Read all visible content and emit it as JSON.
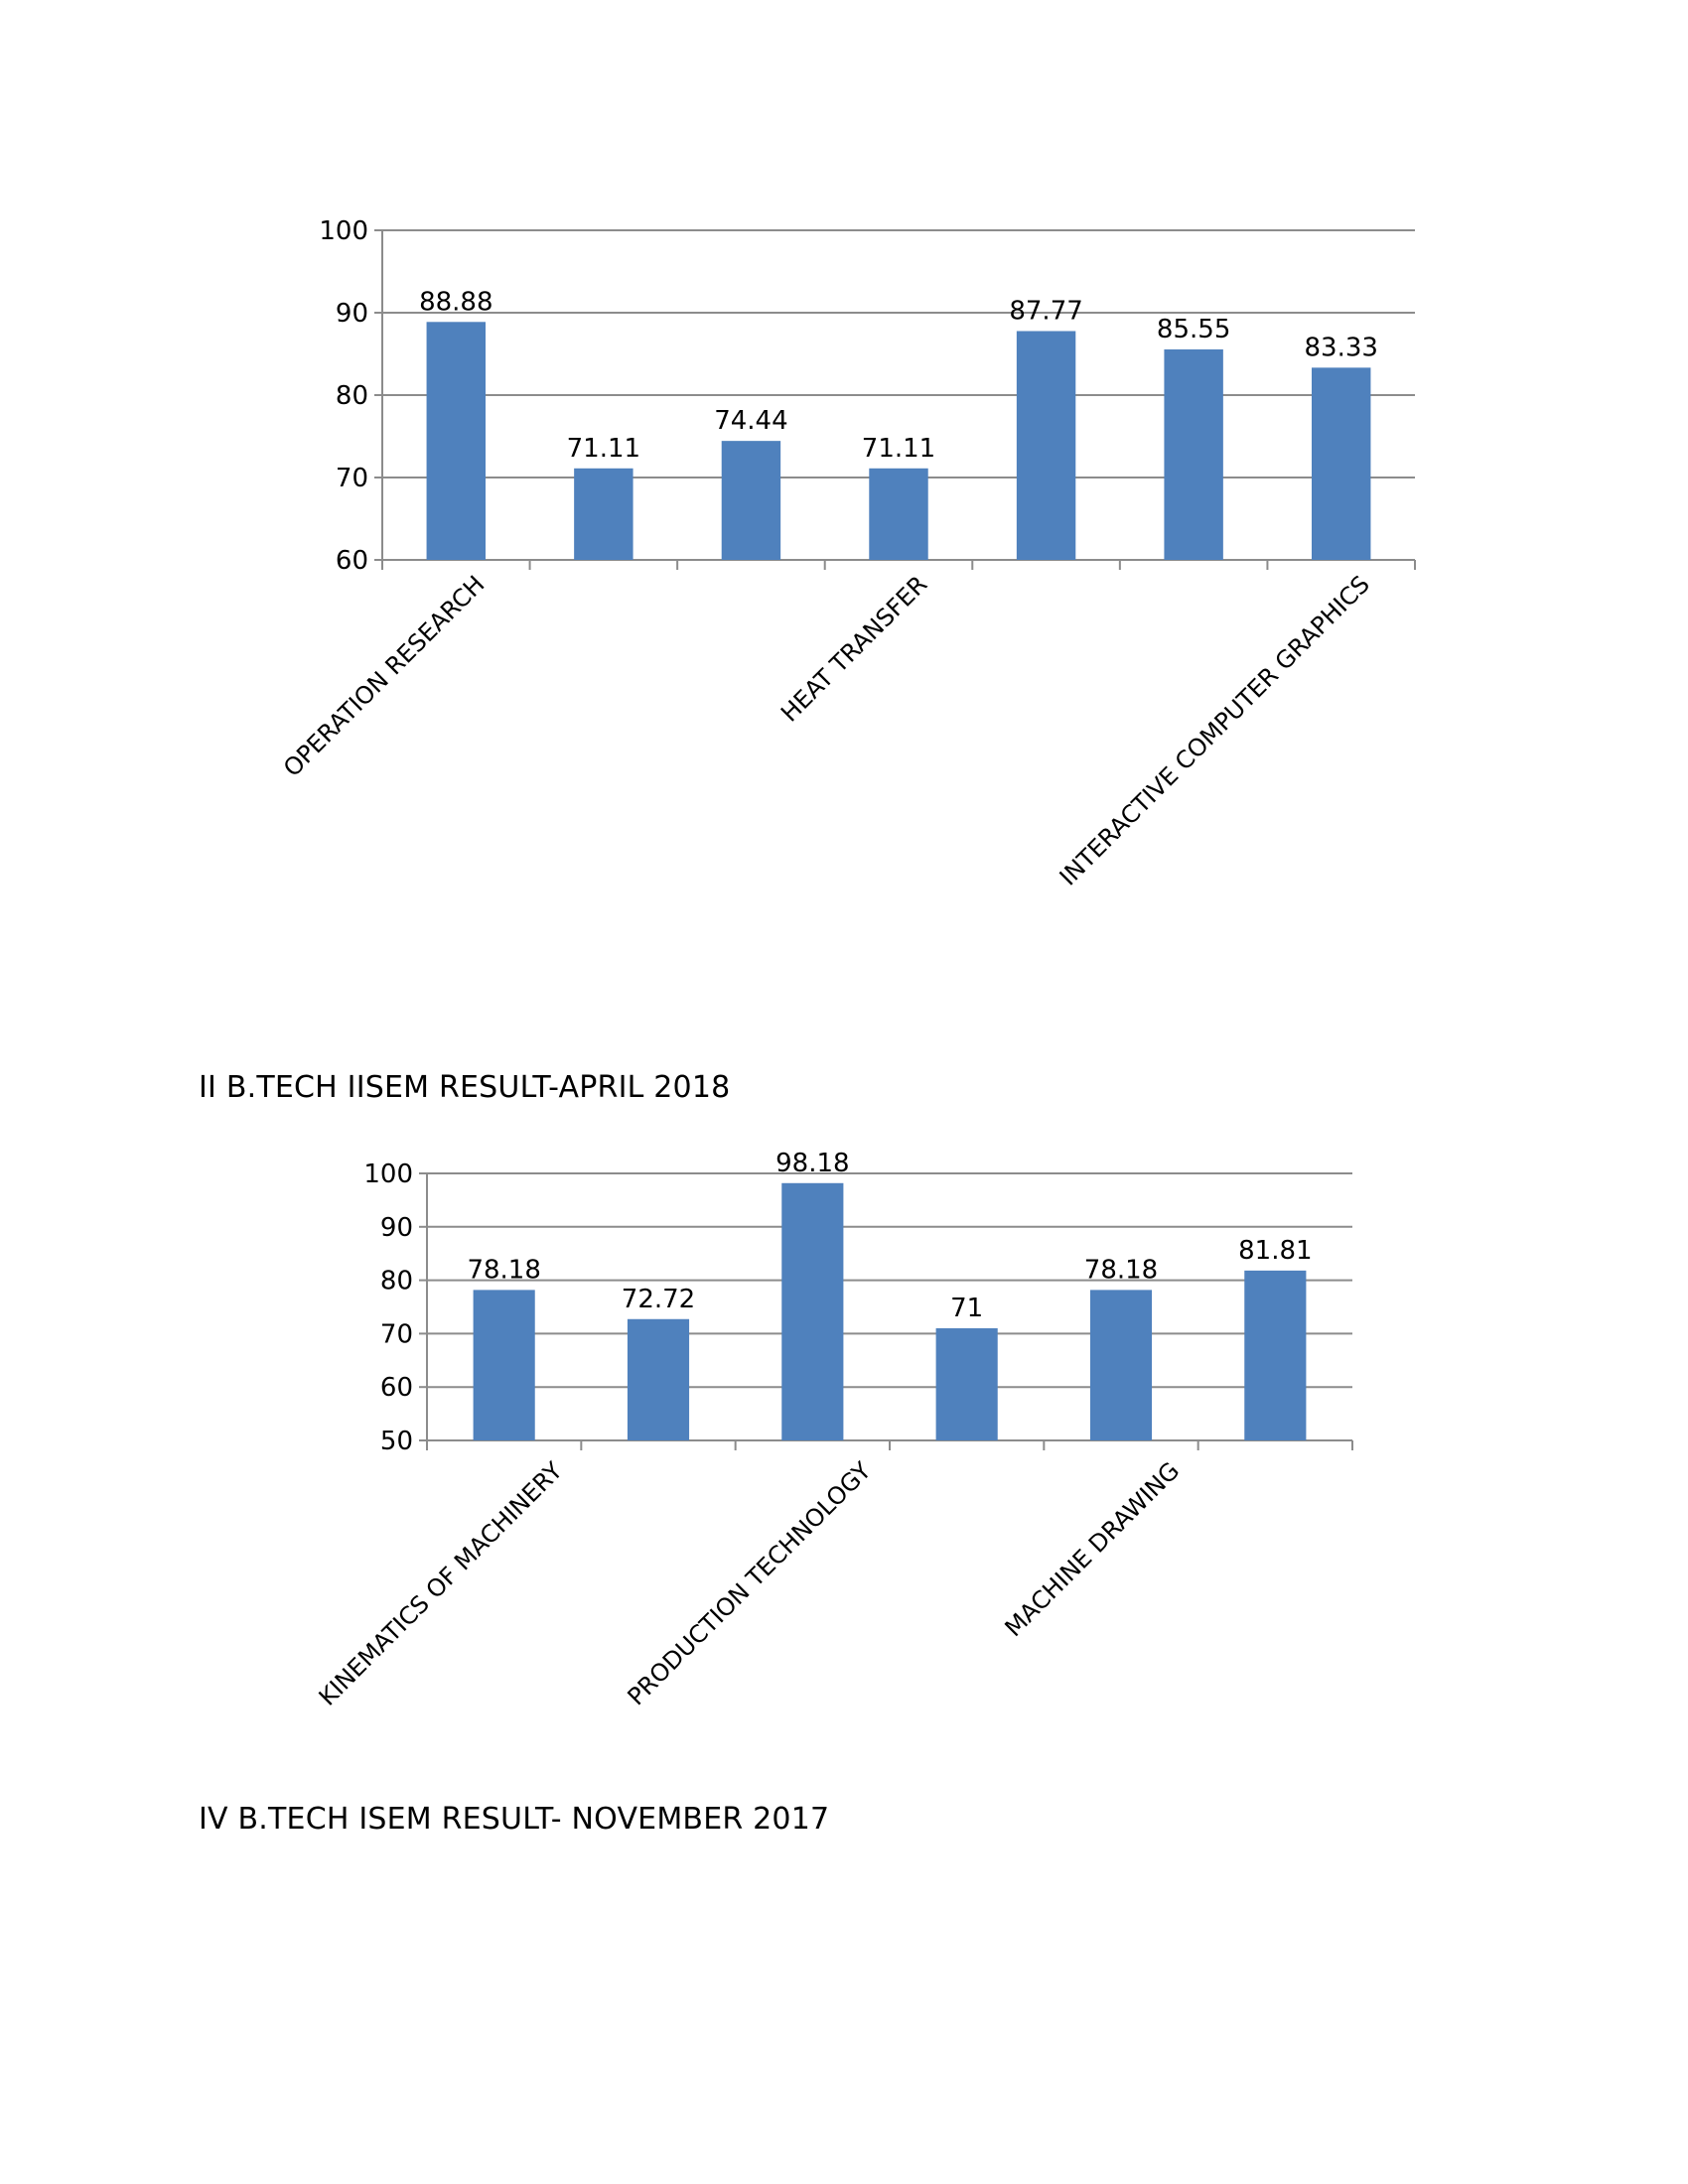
{
  "chart_data": [
    {
      "type": "bar",
      "categories": [
        "OPERATION RESEARCH",
        "",
        "",
        "HEAT TRANSFER",
        "",
        "",
        "INTERACTIVE COMPUTER GRAPHICS"
      ],
      "values": [
        88.88,
        71.11,
        74.44,
        71.11,
        87.77,
        85.55,
        83.33
      ],
      "data_labels": [
        "88.88",
        "71.11",
        "74.44",
        "71.11",
        "87.77",
        "85.55",
        "83.33"
      ],
      "ylim": [
        60,
        100
      ],
      "yticks": [
        60,
        70,
        80,
        90,
        100
      ],
      "grid": true,
      "bar_color": "#4f81bd"
    },
    {
      "type": "bar",
      "categories": [
        "KINEMATICS OF MACHINERY",
        "",
        "PRODUCTION TECHNOLOGY",
        "",
        "MACHINE DRAWING",
        ""
      ],
      "values": [
        78.18,
        72.72,
        98.18,
        71,
        78.18,
        81.81
      ],
      "data_labels": [
        "78.18",
        "72.72",
        "98.18",
        "71",
        "78.18",
        "81.81"
      ],
      "ylim": [
        50,
        100
      ],
      "yticks": [
        50,
        60,
        70,
        80,
        90,
        100
      ],
      "grid": true,
      "bar_color": "#4f81bd"
    }
  ],
  "captions": {
    "first": "II B.TECH IISEM RESULT-APRIL 2018",
    "second": "IV B.TECH ISEM RESULT- NOVEMBER 2017"
  }
}
